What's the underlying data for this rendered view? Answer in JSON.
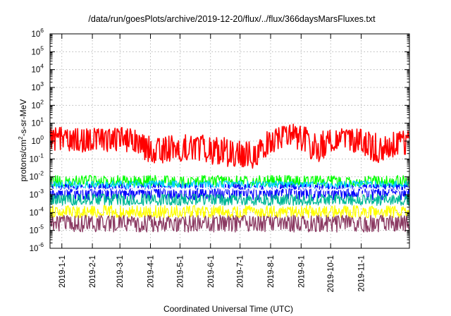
{
  "chart_data": {
    "type": "line",
    "title": "/data/run/goesPlots/archive/2019-12-20/flux/../flux/366daysMarsFluxes.txt",
    "xlabel": "Coordinated Universal Time (UTC)",
    "ylabel": {
      "base": "protons/cm",
      "sup": "2",
      "rest": "-s-sr-MeV"
    },
    "yscale": "log",
    "ylim": [
      1e-06,
      1000000.0
    ],
    "xlim": [
      "2018-12-20",
      "2019-12-20"
    ],
    "grid": true,
    "legend": "none",
    "yticks": [
      {
        "value": 1e-06,
        "base": "10",
        "exp": "-6"
      },
      {
        "value": 1e-05,
        "base": "10",
        "exp": "-5"
      },
      {
        "value": 0.0001,
        "base": "10",
        "exp": "-4"
      },
      {
        "value": 0.001,
        "base": "10",
        "exp": "-3"
      },
      {
        "value": 0.01,
        "base": "10",
        "exp": "-2"
      },
      {
        "value": 0.1,
        "base": "10",
        "exp": "-1"
      },
      {
        "value": 1.0,
        "base": "10",
        "exp": "0"
      },
      {
        "value": 10.0,
        "base": "10",
        "exp": "1"
      },
      {
        "value": 100.0,
        "base": "10",
        "exp": "2"
      },
      {
        "value": 1000.0,
        "base": "10",
        "exp": "3"
      },
      {
        "value": 10000.0,
        "base": "10",
        "exp": "4"
      },
      {
        "value": 100000.0,
        "base": "10",
        "exp": "5"
      },
      {
        "value": 1000000.0,
        "base": "10",
        "exp": "6"
      }
    ],
    "xticks": [
      {
        "label": "2019-1-1",
        "date": "2019-01-01"
      },
      {
        "label": "2019-2-1",
        "date": "2019-02-01"
      },
      {
        "label": "2019-3-1",
        "date": "2019-03-01"
      },
      {
        "label": "2019-4-1",
        "date": "2019-04-01"
      },
      {
        "label": "2019-5-1",
        "date": "2019-05-01"
      },
      {
        "label": "2019-6-1",
        "date": "2019-06-01"
      },
      {
        "label": "2019-7-1",
        "date": "2019-07-01"
      },
      {
        "label": "2019-8-1",
        "date": "2019-08-01"
      },
      {
        "label": "2019-9-1",
        "date": "2019-09-01"
      },
      {
        "label": "2019-10-1",
        "date": "2019-10-01"
      },
      {
        "label": "2019-11-1",
        "date": "2019-11-01"
      }
    ],
    "series": [
      {
        "color": "#ff0000",
        "x": [
          "2018-12-20",
          "2019-01-01",
          "2019-01-15",
          "2019-02-01",
          "2019-02-15",
          "2019-03-01",
          "2019-03-15",
          "2019-04-01",
          "2019-04-15",
          "2019-05-01",
          "2019-05-15",
          "2019-06-01",
          "2019-06-15",
          "2019-07-01",
          "2019-07-15",
          "2019-08-01",
          "2019-08-15",
          "2019-09-01",
          "2019-09-15",
          "2019-10-01",
          "2019-10-15",
          "2019-11-01",
          "2019-11-15",
          "2019-12-01",
          "2019-12-20"
        ],
        "y": [
          1.2,
          1.5,
          1.0,
          1.8,
          0.9,
          2.0,
          0.8,
          0.3,
          0.35,
          0.4,
          0.6,
          0.25,
          0.2,
          0.12,
          0.15,
          1.2,
          2.0,
          2.5,
          0.3,
          1.2,
          1.5,
          0.8,
          0.3,
          0.6,
          0.8
        ],
        "upper": [
          6,
          6,
          5,
          6,
          5,
          6,
          5,
          2,
          2,
          2,
          3,
          2,
          2,
          1,
          1,
          5,
          8,
          10,
          4,
          5,
          6,
          5,
          3,
          3,
          4
        ],
        "lower": [
          0.3,
          0.3,
          0.2,
          0.3,
          0.2,
          0.3,
          0.2,
          0.06,
          0.06,
          0.07,
          0.1,
          0.05,
          0.04,
          0.03,
          0.03,
          0.2,
          0.3,
          0.3,
          0.05,
          0.2,
          0.3,
          0.15,
          0.05,
          0.1,
          0.15
        ]
      },
      {
        "color": "#00ff00",
        "x": [
          "2018-12-20",
          "2019-03-01",
          "2019-06-01",
          "2019-09-01",
          "2019-12-20"
        ],
        "y": [
          0.005,
          0.005,
          0.005,
          0.005,
          0.005
        ],
        "upper": [
          0.012,
          0.012,
          0.012,
          0.012,
          0.012
        ],
        "lower": [
          0.003,
          0.003,
          0.003,
          0.003,
          0.003
        ]
      },
      {
        "color": "#00ccff",
        "x": [
          "2018-12-20",
          "2019-03-01",
          "2019-06-01",
          "2019-09-01",
          "2019-12-20"
        ],
        "y": [
          0.0035,
          0.0035,
          0.0035,
          0.0035,
          0.0035
        ],
        "upper": [
          0.006,
          0.006,
          0.006,
          0.006,
          0.006
        ],
        "lower": [
          0.002,
          0.002,
          0.002,
          0.002,
          0.002
        ]
      },
      {
        "color": "#0000ff",
        "x": [
          "2018-12-20",
          "2019-03-01",
          "2019-06-01",
          "2019-09-01",
          "2019-12-20"
        ],
        "y": [
          0.0015,
          0.0015,
          0.0015,
          0.0015,
          0.0015
        ],
        "upper": [
          0.004,
          0.004,
          0.004,
          0.004,
          0.004
        ],
        "lower": [
          0.0005,
          0.0005,
          0.0005,
          0.0005,
          0.0005
        ]
      },
      {
        "color": "#ffffff",
        "x": [
          "2018-12-20",
          "2019-03-01",
          "2019-06-01",
          "2019-09-01",
          "2019-12-20"
        ],
        "y": [
          0.002,
          0.002,
          0.002,
          0.002,
          0.002
        ],
        "upper": [
          0.0026,
          0.0026,
          0.0026,
          0.0026,
          0.0026
        ],
        "lower": [
          0.0016,
          0.0016,
          0.0016,
          0.0016,
          0.0016
        ]
      },
      {
        "color": "#00b896",
        "x": [
          "2018-12-20",
          "2019-03-01",
          "2019-06-01",
          "2019-09-01",
          "2019-12-20"
        ],
        "y": [
          0.0005,
          0.0005,
          0.0005,
          0.0005,
          0.0005
        ],
        "upper": [
          0.0011,
          0.0011,
          0.0011,
          0.0011,
          0.0011
        ],
        "lower": [
          0.00025,
          0.00025,
          0.00025,
          0.00025,
          0.00025
        ]
      },
      {
        "color": "#ffff00",
        "x": [
          "2018-12-20",
          "2019-03-01",
          "2019-06-01",
          "2019-09-01",
          "2019-12-20"
        ],
        "y": [
          0.0001,
          0.0001,
          0.0001,
          0.0001,
          0.0001
        ],
        "upper": [
          0.00025,
          0.00025,
          0.00025,
          0.00025,
          0.00025
        ],
        "lower": [
          5e-05,
          5e-05,
          5e-05,
          5e-05,
          5e-05
        ]
      },
      {
        "color": "#8b3a62",
        "x": [
          "2018-12-20",
          "2019-03-01",
          "2019-06-01",
          "2019-09-01",
          "2019-12-20"
        ],
        "y": [
          2.5e-05,
          2.5e-05,
          2.5e-05,
          2.5e-05,
          2.5e-05
        ],
        "upper": [
          7e-05,
          7e-05,
          7e-05,
          7e-05,
          7e-05
        ],
        "lower": [
          8e-06,
          8e-06,
          8e-06,
          8e-06,
          8e-06
        ]
      }
    ]
  }
}
